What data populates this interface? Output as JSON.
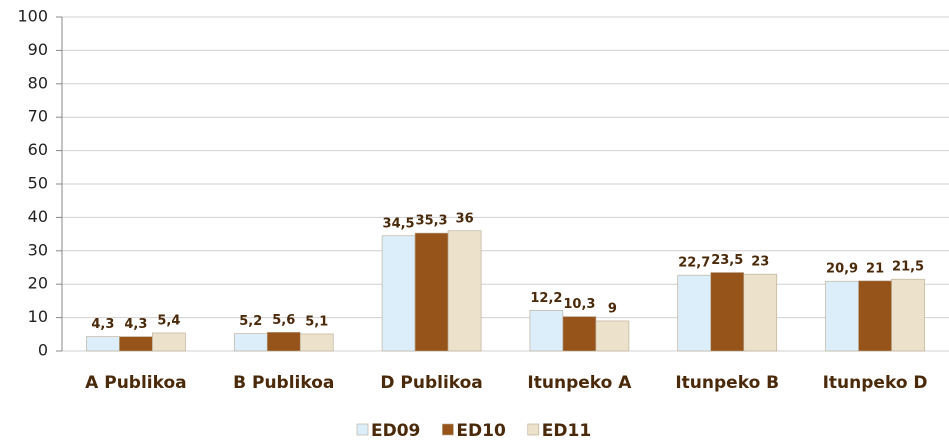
{
  "chart_data": {
    "type": "bar",
    "categories": [
      "A Publikoa",
      "B Publikoa",
      "D Publikoa",
      "Itunpeko A",
      "Itunpeko B",
      "Itunpeko D"
    ],
    "series": [
      {
        "name": "ED09",
        "color": "#dbeefa",
        "values": [
          4.3,
          5.2,
          34.5,
          12.2,
          22.7,
          20.9
        ],
        "value_labels": [
          "4,3",
          "5,2",
          "34,5",
          "12,2",
          "22,7",
          "20,9"
        ]
      },
      {
        "name": "ED10",
        "color": "#96531a",
        "values": [
          4.3,
          5.6,
          35.3,
          10.3,
          23.5,
          21
        ],
        "value_labels": [
          "4,3",
          "5,6",
          "35,3",
          "10,3",
          "23,5",
          "21"
        ]
      },
      {
        "name": "ED11",
        "color": "#ece2cc",
        "values": [
          5.4,
          5.1,
          36,
          9,
          23,
          21.5
        ],
        "value_labels": [
          "5,4",
          "5,1",
          "36",
          "9",
          "23",
          "21,5"
        ]
      }
    ],
    "ylim": [
      0,
      100
    ],
    "yticks": [
      0,
      10,
      20,
      30,
      40,
      50,
      60,
      70,
      80,
      90,
      100
    ],
    "grid": true
  }
}
